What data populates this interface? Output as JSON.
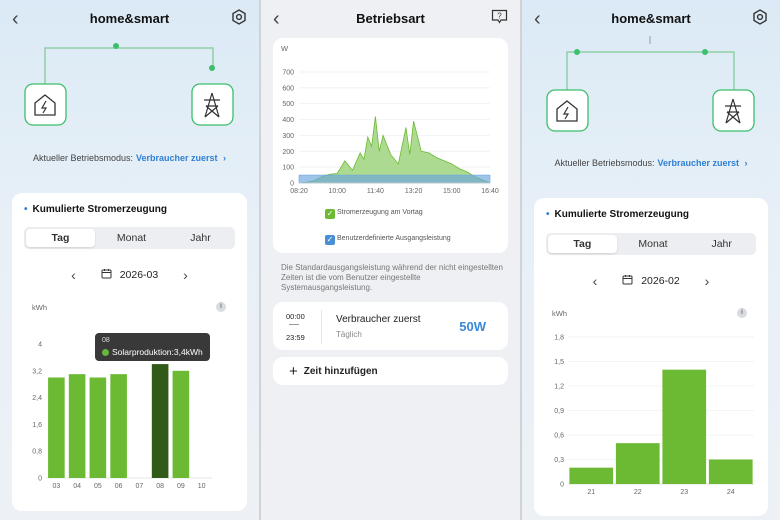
{
  "panel1": {
    "title": "home&smart",
    "mode_label": "Aktueller Betriebsmodus:",
    "mode_value": "Verbraucher zuerst",
    "card_title": "Kumulierte Stromerzeugung",
    "tabs": [
      "Tag",
      "Monat",
      "Jahr"
    ],
    "active_tab": "Tag",
    "date": "2026-03",
    "unit": "kWh",
    "tooltip": {
      "label": "08",
      "text": "Solarproduktion:3,4kWh"
    },
    "chart_data": {
      "type": "bar",
      "categories": [
        "03",
        "04",
        "05",
        "06",
        "07",
        "08",
        "09",
        "10"
      ],
      "values": [
        3.0,
        3.1,
        3.0,
        3.1,
        0,
        3.4,
        3.2,
        0
      ],
      "highlight_index": 5,
      "ylim": [
        0,
        4
      ],
      "yticks": [
        "0",
        "0,8",
        "1,6",
        "2,4",
        "3,2",
        "4"
      ],
      "ytick_values": [
        0,
        0.8,
        1.6,
        2.4,
        3.2,
        4.0
      ],
      "ylabel": "kWh",
      "colors": {
        "bar": "#6cba33",
        "highlight": "#2f5a17"
      }
    }
  },
  "panel2": {
    "title": "Betriebsart",
    "unit": "W",
    "legend": [
      "Stromerzeugung am Vortag",
      "Benutzerdefinierte Ausgangsleistung"
    ],
    "description": "Die Standardausgangsleistung während der nicht eingestellten Zeiten ist die vom Benutzer eingestellte Systemausgangsleistung.",
    "schedule": {
      "start": "00:00",
      "end": "23:59",
      "name": "Verbraucher zuerst",
      "repeat": "Täglich",
      "power": "50W"
    },
    "add_label": "Zeit hinzufügen",
    "chart_data": {
      "type": "area",
      "x": [
        "08:20",
        "08:40",
        "09:00",
        "09:20",
        "09:40",
        "10:00",
        "10:20",
        "10:40",
        "11:00",
        "11:10",
        "11:20",
        "11:30",
        "11:40",
        "11:50",
        "12:00",
        "12:10",
        "12:20",
        "12:40",
        "13:00",
        "13:10",
        "13:20",
        "13:40",
        "14:00",
        "14:20",
        "14:40",
        "15:00",
        "15:20",
        "15:40",
        "16:00",
        "16:20",
        "16:40"
      ],
      "series": [
        {
          "name": "Stromerzeugung am Vortag",
          "values": [
            0,
            5,
            15,
            40,
            55,
            60,
            140,
            80,
            190,
            150,
            290,
            230,
            420,
            200,
            300,
            240,
            180,
            120,
            350,
            180,
            390,
            200,
            190,
            160,
            140,
            120,
            90,
            70,
            40,
            20,
            0
          ]
        },
        {
          "name": "Benutzerdefinierte Ausgangsleistung",
          "values": [
            50,
            50,
            50,
            50,
            50,
            50,
            50,
            50,
            50,
            50,
            50,
            50,
            50,
            50,
            50,
            50,
            50,
            50,
            50,
            50,
            50,
            50,
            50,
            50,
            50,
            50,
            50,
            50,
            50,
            50,
            50
          ]
        }
      ],
      "xticks": [
        "08:20",
        "10:00",
        "11:40",
        "13:20",
        "15:00",
        "16:40"
      ],
      "yticks": [
        "0",
        "100",
        "200",
        "300",
        "400",
        "500",
        "600",
        "700"
      ],
      "ytick_values": [
        0,
        100,
        200,
        300,
        400,
        500,
        600,
        700
      ],
      "ylim": [
        0,
        700
      ],
      "ylabel": "W",
      "colors": {
        "area": "#9fd37e",
        "line": "#6cba33",
        "output": "#6aa5dd"
      }
    }
  },
  "panel3": {
    "title": "home&smart",
    "mode_label": "Aktueller Betriebsmodus:",
    "mode_value": "Verbraucher zuerst",
    "card_title": "Kumulierte Stromerzeugung",
    "tabs": [
      "Tag",
      "Monat",
      "Jahr"
    ],
    "active_tab": "Tag",
    "date": "2026-02",
    "unit": "kWh",
    "chart_data": {
      "type": "bar",
      "categories": [
        "21",
        "22",
        "23",
        "24"
      ],
      "values": [
        0.2,
        0.5,
        1.4,
        0.3
      ],
      "ylim": [
        0,
        1.8
      ],
      "yticks": [
        "0",
        "0,3",
        "0,6",
        "0,9",
        "1,2",
        "1,5",
        "1,8"
      ],
      "ytick_values": [
        0,
        0.3,
        0.6,
        0.9,
        1.2,
        1.5,
        1.8
      ],
      "ylabel": "kWh",
      "colors": {
        "bar": "#6cba33"
      }
    }
  }
}
